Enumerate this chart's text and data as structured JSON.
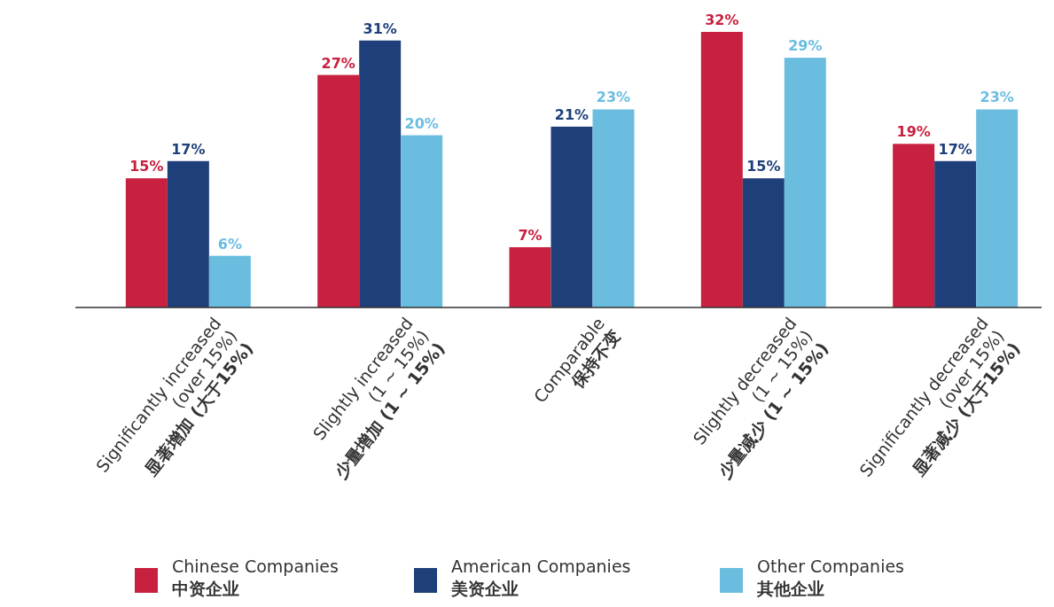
{
  "chart_data": {
    "type": "bar",
    "categories": [
      "Significantly increased\n(over 15%)\n显著增加 (大于15%)",
      "Slightly increased\n(1 ~ 15%)\n少量增加 (1 ~ 15%)",
      "Comparable\n保持不变",
      "Slightly decreased\n(1 ~ 15%)\n少量减少 (1 ~ 15%)",
      "Significantly decreased\n(over 15%)\n显著减少 (大于15%)"
    ],
    "series": [
      {
        "name": "Chinese Companies\n中资企业",
        "color": "#c8203f",
        "values": [
          15,
          27,
          7,
          32,
          19
        ],
        "value_labels": [
          "15%",
          "27%",
          "7%",
          "32%",
          "19%"
        ]
      },
      {
        "name": "American Companies\n美资企业",
        "color": "#1f3f7a",
        "values": [
          17,
          31,
          21,
          15,
          17
        ],
        "value_labels": [
          "17%",
          "31%",
          "21%",
          "15%",
          "17%"
        ]
      },
      {
        "name": "Other Companies\n其他企业",
        "color": "#6bbde0",
        "values": [
          6,
          20,
          23,
          29,
          23
        ],
        "value_labels": [
          "6%",
          "20%",
          "23%",
          "29%",
          "23%"
        ]
      }
    ],
    "legend": "bottom"
  }
}
